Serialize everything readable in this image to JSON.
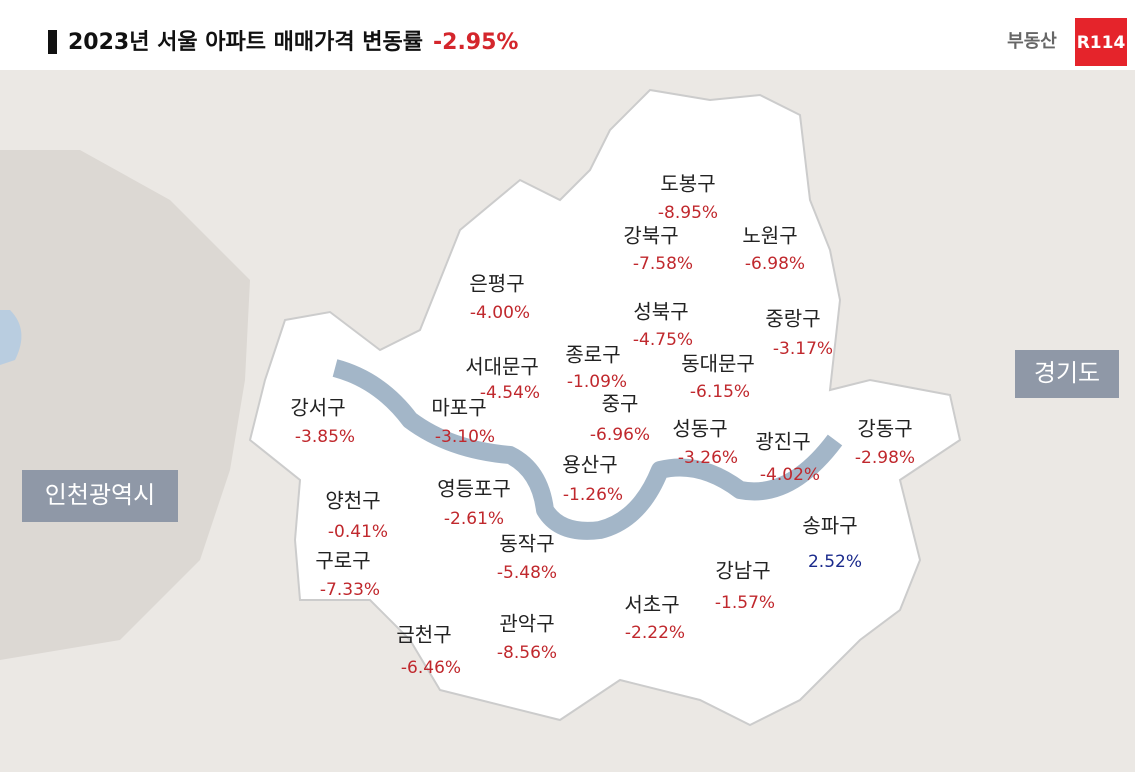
{
  "header": {
    "title": "2023년 서울 아파트 매매가격 변동률",
    "total": "-2.95%",
    "brand": "부동산",
    "logo": "R114"
  },
  "regions": [
    "경기도",
    "인천광역시"
  ],
  "districts": [
    {
      "name": "도봉구",
      "change": "-8.95%",
      "color": "#c0282d"
    },
    {
      "name": "강북구",
      "change": "-7.58%",
      "color": "#c0282d"
    },
    {
      "name": "노원구",
      "change": "-6.98%",
      "color": "#c0282d"
    },
    {
      "name": "은평구",
      "change": "-4.00%",
      "color": "#c0282d"
    },
    {
      "name": "성북구",
      "change": "-4.75%",
      "color": "#c0282d"
    },
    {
      "name": "중랑구",
      "change": "-3.17%",
      "color": "#c0282d"
    },
    {
      "name": "종로구",
      "change": "-1.09%",
      "color": "#c0282d"
    },
    {
      "name": "서대문구",
      "change": "-4.54%",
      "color": "#c0282d"
    },
    {
      "name": "동대문구",
      "change": "-6.15%",
      "color": "#c0282d"
    },
    {
      "name": "강서구",
      "change": "-3.85%",
      "color": "#c0282d"
    },
    {
      "name": "마포구",
      "change": "-3.10%",
      "color": "#c0282d"
    },
    {
      "name": "중구",
      "change": "-6.96%",
      "color": "#c0282d"
    },
    {
      "name": "성동구",
      "change": "-3.26%",
      "color": "#c0282d"
    },
    {
      "name": "광진구",
      "change": "-4.02%",
      "color": "#c0282d"
    },
    {
      "name": "강동구",
      "change": "-2.98%",
      "color": "#c0282d"
    },
    {
      "name": "용산구",
      "change": "-1.26%",
      "color": "#c0282d"
    },
    {
      "name": "양천구",
      "change": "-0.41%",
      "color": "#c0282d"
    },
    {
      "name": "영등포구",
      "change": "-2.61%",
      "color": "#c0282d"
    },
    {
      "name": "송파구",
      "change": "2.52%",
      "color": "#1a2a8c"
    },
    {
      "name": "구로구",
      "change": "-7.33%",
      "color": "#c0282d"
    },
    {
      "name": "동작구",
      "change": "-5.48%",
      "color": "#c0282d"
    },
    {
      "name": "강남구",
      "change": "-1.57%",
      "color": "#c0282d"
    },
    {
      "name": "서초구",
      "change": "-2.22%",
      "color": "#c0282d"
    },
    {
      "name": "관악구",
      "change": "-8.56%",
      "color": "#c0282d"
    },
    {
      "name": "금천구",
      "change": "-6.46%",
      "color": "#c0282d"
    }
  ]
}
